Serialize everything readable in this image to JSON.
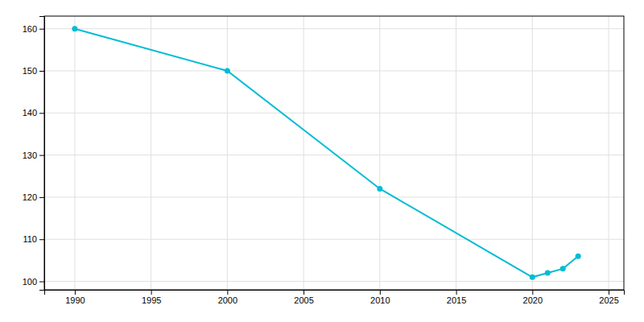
{
  "chart_data": {
    "type": "line",
    "x": [
      1990,
      2000,
      2010,
      2020,
      2021,
      2022,
      2023
    ],
    "values": [
      160,
      150,
      122,
      101,
      102,
      103,
      106
    ],
    "color": "#00bcd4",
    "marker": "circle",
    "xlim": [
      1988,
      2026
    ],
    "ylim": [
      98,
      163
    ],
    "xticks": [
      1990,
      1995,
      2000,
      2005,
      2010,
      2015,
      2020,
      2025
    ],
    "yticks": [
      100,
      110,
      120,
      130,
      140,
      150,
      160
    ],
    "grid": true
  }
}
